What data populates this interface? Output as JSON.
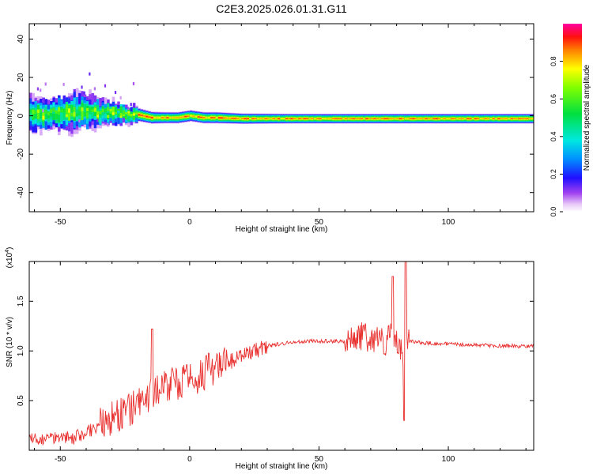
{
  "title": "C2E3.2025.026.01.31.G11",
  "chart_data": [
    {
      "type": "heatmap",
      "name": "spectrogram",
      "xlabel": "Height of straight line (km)",
      "ylabel": "Frequency (Hz)",
      "xlim": [
        -62,
        133
      ],
      "ylim": [
        -50,
        48
      ],
      "x_ticks": [
        -50,
        0,
        50,
        100
      ],
      "y_ticks": [
        -40,
        -20,
        0,
        20,
        40
      ],
      "x_tick_labels": [
        "-50",
        "0",
        "50",
        "100"
      ],
      "y_tick_labels": [
        "-40",
        "-20",
        "0",
        "20",
        "40"
      ],
      "colorbar": {
        "label": "Normalized spectral amplitude",
        "range": [
          0.0,
          1.0
        ],
        "ticks": [
          0.0,
          0.2,
          0.4,
          0.6,
          0.8
        ],
        "tick_labels": [
          "0.0",
          "0.2",
          "0.4",
          "0.6",
          "0.8"
        ]
      },
      "ridge": {
        "x": [
          -62,
          -55,
          -50,
          -45,
          -40,
          -35,
          -30,
          -25,
          -20,
          -15,
          -10,
          -5,
          0,
          5,
          10,
          20,
          40,
          60,
          80,
          100,
          133
        ],
        "frequency": [
          0.5,
          1.0,
          1.5,
          2.0,
          2.0,
          1.5,
          1.5,
          1.0,
          0.5,
          -1.0,
          -1.0,
          -1.0,
          0.0,
          -1.0,
          -1.0,
          -1.5,
          -1.5,
          -1.5,
          -1.5,
          -1.5,
          -1.5
        ],
        "half_width": [
          8,
          7,
          8,
          9,
          8,
          6,
          5,
          4,
          3.5,
          3.2,
          3,
          3,
          3,
          3,
          3,
          2.8,
          2.6,
          2.6,
          2.6,
          2.6,
          2.6
        ]
      }
    },
    {
      "type": "line",
      "name": "snr",
      "xlabel": "Height of straight line (km)",
      "ylabel": "SNR (10 * v/v)",
      "y_multiplier": "(x10",
      "y_multiplier_exp": "4",
      "y_multiplier_close": ")",
      "xlim": [
        -62,
        133
      ],
      "ylim": [
        0,
        1.9
      ],
      "x_ticks": [
        -50,
        0,
        50,
        100
      ],
      "y_ticks": [
        0.5,
        1.0,
        1.5
      ],
      "x_tick_labels": [
        "-50",
        "0",
        "50",
        "100"
      ],
      "y_tick_labels": [
        "0.5",
        "1.0",
        "1.5"
      ],
      "color": "#e8312f",
      "series": [
        {
          "x": [
            -62,
            -55,
            -50,
            -45,
            -40,
            -35,
            -30,
            -25,
            -20,
            -15,
            -10,
            -5,
            0,
            5,
            10,
            15,
            20,
            25,
            30,
            35,
            40,
            50,
            60,
            62,
            65,
            70,
            75,
            78,
            80,
            83,
            84,
            85,
            90,
            100,
            110,
            120,
            133
          ],
          "values": [
            0.1,
            0.12,
            0.15,
            0.12,
            0.18,
            0.25,
            0.32,
            0.38,
            0.45,
            0.55,
            0.65,
            0.68,
            0.7,
            0.78,
            0.82,
            0.88,
            0.95,
            1.0,
            1.05,
            1.07,
            1.09,
            1.1,
            1.1,
            1.12,
            1.15,
            1.13,
            1.08,
            1.15,
            1.1,
            0.95,
            1.08,
            1.1,
            1.08,
            1.07,
            1.06,
            1.05,
            1.05
          ],
          "features": [
            {
              "x": -14.5,
              "value": 1.22
            },
            {
              "x": 78.5,
              "value": 1.75
            },
            {
              "x": 83.0,
              "value": 0.3
            },
            {
              "x": 83.5,
              "value": 1.9
            }
          ]
        }
      ]
    }
  ]
}
